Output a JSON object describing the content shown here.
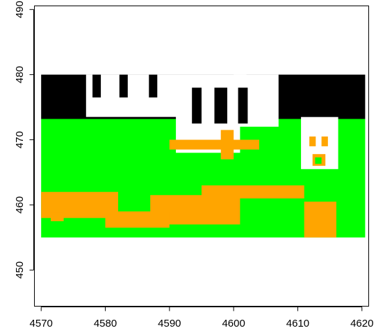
{
  "chart_data": {
    "type": "heatmap",
    "title": "",
    "xlabel": "",
    "ylabel": "",
    "xlim": [
      4569,
      4621
    ],
    "ylim": [
      444.5,
      490.5
    ],
    "x_ticks": [
      "4570",
      "4580",
      "4590",
      "4600",
      "4610",
      "4620"
    ],
    "y_ticks": [
      "450",
      "460",
      "470",
      "480",
      "490"
    ],
    "grid": false,
    "legend": "none",
    "raster_extent": {
      "x": [
        4570,
        4620.5
      ],
      "y": [
        455,
        480
      ]
    },
    "classes": [
      {
        "color": "#000000",
        "description_code": "class-1"
      },
      {
        "color": "#ffffff",
        "description_code": "class-2"
      },
      {
        "color": "#ffa500",
        "description_code": "class-3"
      },
      {
        "color": "#00ff00",
        "description_code": "class-4"
      }
    ],
    "regions": [
      {
        "class": "class-4",
        "x": [
          4570,
          4620.5
        ],
        "y": [
          455,
          473.2
        ]
      },
      {
        "class": "class-1",
        "x": [
          4570,
          4620.5
        ],
        "y": [
          473.2,
          480
        ]
      },
      {
        "class": "class-2",
        "x": [
          4577,
          4602
        ],
        "y": [
          473.5,
          480
        ]
      },
      {
        "class": "class-2",
        "x": [
          4591,
          4601
        ],
        "y": [
          468,
          479
        ]
      },
      {
        "class": "class-2",
        "x": [
          4600,
          4607
        ],
        "y": [
          472,
          480
        ]
      },
      {
        "class": "class-2",
        "x": [
          4610.5,
          4616.3
        ],
        "y": [
          465.5,
          473.5
        ]
      },
      {
        "class": "class-1",
        "x": [
          4578,
          4579.3
        ],
        "y": [
          476.5,
          480
        ]
      },
      {
        "class": "class-1",
        "x": [
          4582.2,
          4583.5
        ],
        "y": [
          476.5,
          480
        ]
      },
      {
        "class": "class-1",
        "x": [
          4586.8,
          4588.1
        ],
        "y": [
          476.5,
          480
        ]
      },
      {
        "class": "class-1",
        "x": [
          4593.5,
          4595
        ],
        "y": [
          472.5,
          478
        ]
      },
      {
        "class": "class-1",
        "x": [
          4597,
          4599
        ],
        "y": [
          472.5,
          478
        ]
      },
      {
        "class": "class-1",
        "x": [
          4600.7,
          4602.2
        ],
        "y": [
          472.5,
          478
        ]
      },
      {
        "class": "class-3",
        "x": [
          4598,
          4600
        ],
        "y": [
          467,
          471.5
        ]
      },
      {
        "class": "class-3",
        "x": [
          4590,
          4604
        ],
        "y": [
          468.5,
          470
        ]
      },
      {
        "class": "class-3",
        "x": [
          4570,
          4582
        ],
        "y": [
          458,
          462
        ]
      },
      {
        "class": "class-3",
        "x": [
          4587,
          4601
        ],
        "y": [
          457,
          461.5
        ]
      },
      {
        "class": "class-3",
        "x": [
          4580,
          4590
        ],
        "y": [
          456.5,
          459
        ]
      },
      {
        "class": "class-3",
        "x": [
          4611,
          4616
        ],
        "y": [
          455,
          460.5
        ]
      },
      {
        "class": "class-3",
        "x": [
          4595,
          4611
        ],
        "y": [
          461,
          463
        ]
      },
      {
        "class": "class-3",
        "x": [
          4571.5,
          4573.5
        ],
        "y": [
          457.5,
          458.8
        ]
      },
      {
        "class": "class-3",
        "x": [
          4570.5,
          4572
        ],
        "y": [
          459.5,
          460
        ]
      },
      {
        "class": "class-3",
        "x": [
          4611.8,
          4612.8
        ],
        "y": [
          469,
          470.5
        ]
      },
      {
        "class": "class-3",
        "x": [
          4613.7,
          4614.7
        ],
        "y": [
          469,
          470.5
        ]
      },
      {
        "class": "class-3",
        "x": [
          4612.3,
          4614.3
        ],
        "y": [
          466,
          467.8
        ]
      },
      {
        "class": "class-4",
        "x": [
          4612.7,
          4613.7
        ],
        "y": [
          466.3,
          467.3
        ]
      }
    ]
  }
}
